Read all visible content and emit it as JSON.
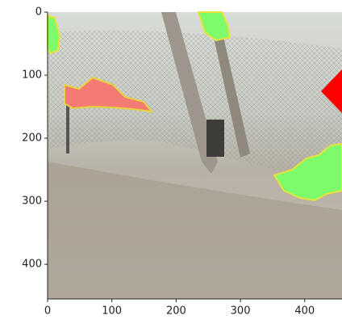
{
  "chart_data": {
    "type": "image",
    "xlim": [
      0,
      458
    ],
    "ylim": [
      0,
      455
    ],
    "y_inverted": true,
    "xticks": [
      0,
      100,
      200,
      300,
      400
    ],
    "yticks": [
      0,
      100,
      200,
      300,
      400
    ]
  }
}
